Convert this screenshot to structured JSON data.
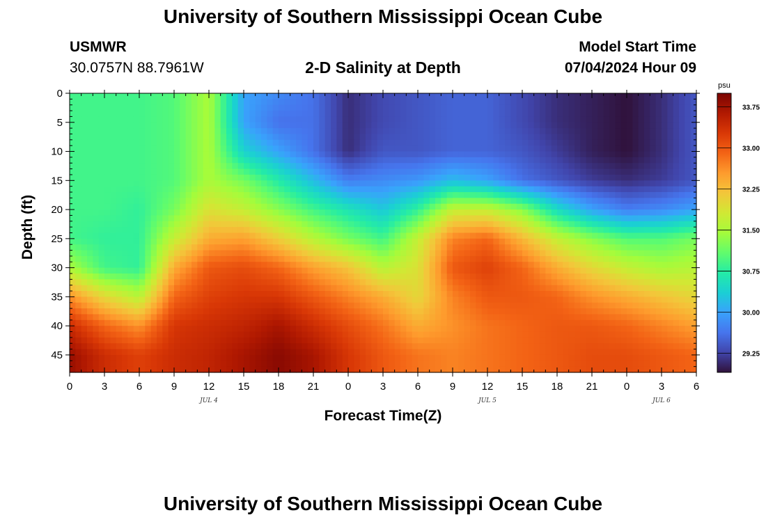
{
  "header": {
    "title": "University of Southern Mississippi Ocean Cube",
    "station": "USMWR",
    "coords": "30.0757N  88.7961W",
    "subtitle": "2-D Salinity at Depth",
    "model_start_label": "Model Start Time",
    "model_start_value": "07/04/2024 Hour 09"
  },
  "footer": {
    "title": "University of Southern Mississippi Ocean Cube"
  },
  "chart_data": {
    "type": "heatmap",
    "title": "2-D Salinity at Depth",
    "xlabel": "Forecast Time(Z)",
    "ylabel": "Depth (ft)",
    "x_ticks": [
      "0",
      "3",
      "6",
      "9",
      "12",
      "15",
      "18",
      "21",
      "0",
      "3",
      "6",
      "9",
      "12",
      "15",
      "18",
      "21",
      "0",
      "3",
      "6"
    ],
    "x_hours": [
      0,
      54
    ],
    "date_labels": [
      {
        "label": "JUL 4",
        "hour": 12
      },
      {
        "label": "JUL 5",
        "hour": 36
      },
      {
        "label": "JUL 6",
        "hour": 51
      }
    ],
    "y_ticks": [
      "0",
      "5",
      "10",
      "15",
      "20",
      "25",
      "30",
      "35",
      "40",
      "45"
    ],
    "ylim": [
      0,
      48
    ],
    "y_inverted": true,
    "colorbar": {
      "unit": "psu",
      "range": [
        28.9,
        34.0
      ],
      "ticks": [
        "33.75",
        "33.00",
        "32.25",
        "31.50",
        "30.75",
        "30.00",
        "29.25"
      ],
      "tick_values": [
        33.75,
        33.0,
        32.25,
        31.5,
        30.75,
        30.0,
        29.25
      ],
      "colors": [
        "#30123b",
        "#4145ab",
        "#4675ed",
        "#39a2fc",
        "#1bcfd4",
        "#24eca6",
        "#61fc6c",
        "#a4fc3b",
        "#d1e834",
        "#f3c63a",
        "#fe9b2d",
        "#f36315",
        "#d93806",
        "#b11901",
        "#7a0402"
      ]
    },
    "x_hours_sampled": [
      0,
      3,
      6,
      9,
      12,
      15,
      18,
      21,
      24,
      27,
      30,
      33,
      36,
      39,
      42,
      45,
      48,
      51,
      54
    ],
    "depths_sampled_ft": [
      0,
      5,
      10,
      15,
      20,
      25,
      30,
      35,
      40,
      45
    ],
    "salinity_psu_grid": [
      [
        30.9,
        30.9,
        30.9,
        31.0,
        31.5,
        30.0,
        29.8,
        29.6,
        29.1,
        29.3,
        29.4,
        29.5,
        29.5,
        29.3,
        29.1,
        29.0,
        28.9,
        29.1,
        29.4
      ],
      [
        30.9,
        30.9,
        30.9,
        31.0,
        31.5,
        30.0,
        29.6,
        29.6,
        29.1,
        29.3,
        29.4,
        29.5,
        29.5,
        29.3,
        29.1,
        29.0,
        28.9,
        29.1,
        29.4
      ],
      [
        30.9,
        30.9,
        30.9,
        31.0,
        31.5,
        30.4,
        30.0,
        29.6,
        29.1,
        29.4,
        29.4,
        29.5,
        29.5,
        29.4,
        29.2,
        29.0,
        28.9,
        29.1,
        29.4
      ],
      [
        30.9,
        30.9,
        30.9,
        31.0,
        31.5,
        31.2,
        30.7,
        30.2,
        29.7,
        29.8,
        29.9,
        30.2,
        30.0,
        29.6,
        29.4,
        29.2,
        29.1,
        29.2,
        29.4
      ],
      [
        30.9,
        30.9,
        30.8,
        31.2,
        31.9,
        31.7,
        31.3,
        30.9,
        30.6,
        30.3,
        30.8,
        31.7,
        31.7,
        31.3,
        30.5,
        30.0,
        29.7,
        29.8,
        30.0
      ],
      [
        30.9,
        30.8,
        30.8,
        31.7,
        32.4,
        32.5,
        32.1,
        31.6,
        31.2,
        30.9,
        31.7,
        32.7,
        32.9,
        32.3,
        31.7,
        31.3,
        31.0,
        31.0,
        31.2
      ],
      [
        31.5,
        30.9,
        30.8,
        32.4,
        33.0,
        33.1,
        32.9,
        32.5,
        32.2,
        31.6,
        31.9,
        33.0,
        33.2,
        32.9,
        32.4,
        32.0,
        31.7,
        31.5,
        31.6
      ],
      [
        32.6,
        32.0,
        31.6,
        32.9,
        33.2,
        33.3,
        33.3,
        33.0,
        32.7,
        32.4,
        32.0,
        32.7,
        33.0,
        33.0,
        32.9,
        32.6,
        32.4,
        32.2,
        32.0
      ],
      [
        33.4,
        32.9,
        32.6,
        33.3,
        33.4,
        33.5,
        33.7,
        33.4,
        33.1,
        32.8,
        32.4,
        32.6,
        32.8,
        32.9,
        33.0,
        33.0,
        32.9,
        32.7,
        32.5
      ],
      [
        33.8,
        33.4,
        33.2,
        33.4,
        33.5,
        33.7,
        33.9,
        33.7,
        33.3,
        33.0,
        32.8,
        32.7,
        32.8,
        32.9,
        33.0,
        33.1,
        33.1,
        33.0,
        32.9
      ]
    ]
  }
}
